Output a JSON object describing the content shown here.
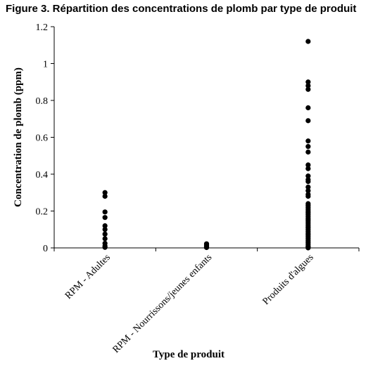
{
  "figure_title": "Figure 3. Répartition des concentrations de plomb par type de produit",
  "chart_data": {
    "type": "scatter",
    "title": "Figure 3. Répartition des concentrations de plomb par type de produit",
    "xlabel": "Type de produit",
    "ylabel": "Concentration de plomb (ppm)",
    "categories": [
      "RPM - Adultes",
      "RPM - Nourrissons/jeunes enfants",
      "Produits d'algues"
    ],
    "ylim": [
      0,
      1.2
    ],
    "yticks": [
      "0",
      "0.2",
      "0.4",
      "0.6",
      "0.8",
      "1",
      "1.2"
    ],
    "grid": false,
    "legend": "none",
    "marker_color": "#000000",
    "series": [
      {
        "category": "RPM - Adultes",
        "values": [
          0.3,
          0.28,
          0.195,
          0.165,
          0.12,
          0.1,
          0.075,
          0.05,
          0.025,
          0.01,
          0.003
        ]
      },
      {
        "category": "RPM - Nourrissons/jeunes enfants",
        "values": [
          0.022,
          0.016,
          0.011,
          0.007,
          0.004,
          0.002
        ]
      },
      {
        "category": "Produits d'algues",
        "values": [
          1.12,
          0.9,
          0.88,
          0.86,
          0.76,
          0.69,
          0.58,
          0.55,
          0.52,
          0.45,
          0.43,
          0.39,
          0.37,
          0.36,
          0.33,
          0.31,
          0.29,
          0.28,
          0.24,
          0.23,
          0.22,
          0.21,
          0.2,
          0.19,
          0.18,
          0.17,
          0.16,
          0.15,
          0.14,
          0.13,
          0.12,
          0.11,
          0.1,
          0.09,
          0.08,
          0.07,
          0.06,
          0.05,
          0.04,
          0.03,
          0.02,
          0.01,
          0.005,
          0.0
        ]
      }
    ]
  }
}
